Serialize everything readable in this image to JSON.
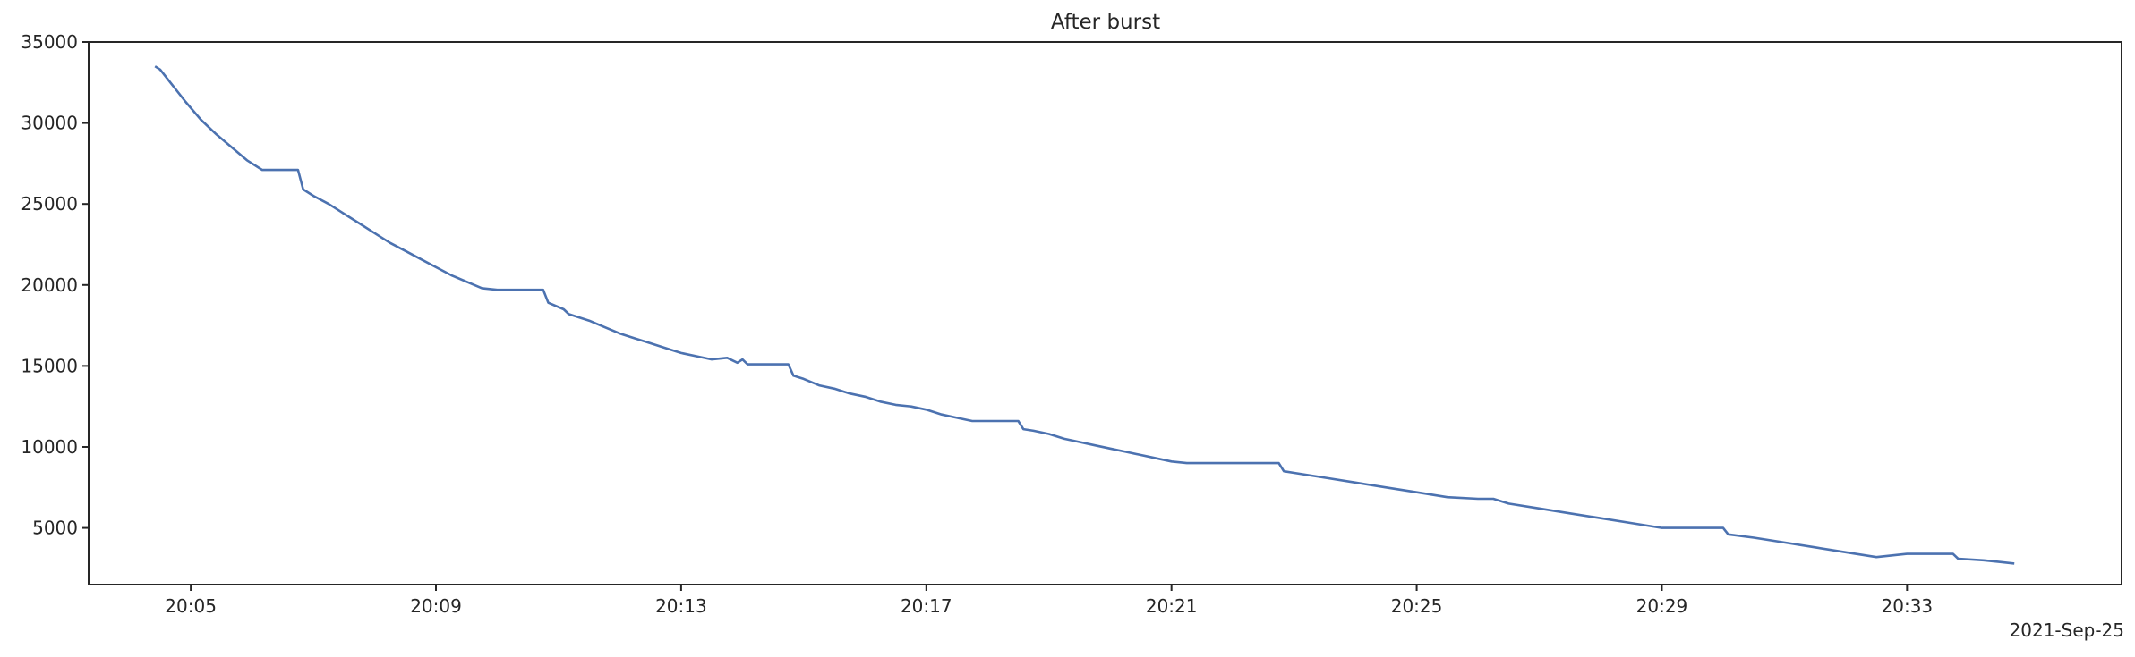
{
  "chart_data": {
    "type": "line",
    "title": "After burst",
    "xlabel": "",
    "ylabel": "",
    "x_offset_label": "2021-Sep-25",
    "xlim": [
      "20:03:20",
      "20:36:30"
    ],
    "ylim": [
      1500,
      35000
    ],
    "x_ticks": [
      "20:05",
      "20:09",
      "20:13",
      "20:17",
      "20:21",
      "20:25",
      "20:29",
      "20:33"
    ],
    "y_ticks": [
      5000,
      10000,
      15000,
      20000,
      25000,
      30000,
      35000
    ],
    "grid": false,
    "line_color": "#4c72b0",
    "series": [
      {
        "x": [
          "20:04:25",
          "20:04:30",
          "20:04:40",
          "20:04:55",
          "20:05:10",
          "20:05:25",
          "20:05:40",
          "20:05:55",
          "20:06:10",
          "20:06:15",
          "20:06:45",
          "20:06:50",
          "20:07:00",
          "20:07:15",
          "20:07:30",
          "20:07:45",
          "20:08:00",
          "20:08:15",
          "20:08:30",
          "20:08:45",
          "20:09:00",
          "20:09:15",
          "20:09:30",
          "20:09:45",
          "20:10:00",
          "20:10:15",
          "20:10:45",
          "20:10:50",
          "20:11:05",
          "20:11:10",
          "20:11:15",
          "20:11:30",
          "20:11:45",
          "20:12:00",
          "20:12:15",
          "20:12:30",
          "20:12:45",
          "20:13:00",
          "20:13:15",
          "20:13:30",
          "20:13:45",
          "20:13:55",
          "20:14:00",
          "20:14:05",
          "20:14:15",
          "20:14:45",
          "20:14:50",
          "20:15:00",
          "20:15:15",
          "20:15:30",
          "20:15:45",
          "20:16:00",
          "20:16:15",
          "20:16:30",
          "20:16:45",
          "20:17:00",
          "20:17:15",
          "20:17:30",
          "20:17:45",
          "20:18:00",
          "20:18:30",
          "20:18:35",
          "20:18:45",
          "20:19:00",
          "20:19:15",
          "20:19:30",
          "20:19:45",
          "20:20:00",
          "20:20:15",
          "20:20:30",
          "20:20:45",
          "20:21:00",
          "20:21:15",
          "20:21:30",
          "20:21:45",
          "20:22:00",
          "20:22:30",
          "20:22:45",
          "20:22:50",
          "20:23:00",
          "20:23:30",
          "20:24:00",
          "20:24:30",
          "20:25:00",
          "20:25:30",
          "20:26:00",
          "20:26:10",
          "20:26:15",
          "20:26:30",
          "20:27:00",
          "20:27:30",
          "20:28:00",
          "20:28:30",
          "20:29:00",
          "20:29:15",
          "20:29:30",
          "20:30:00",
          "20:30:05",
          "20:30:30",
          "20:31:00",
          "20:31:30",
          "20:32:00",
          "20:32:30",
          "20:33:00",
          "20:33:15",
          "20:33:30",
          "20:33:45",
          "20:33:50",
          "20:34:15",
          "20:34:30",
          "20:34:45"
        ],
        "y": [
          33500,
          33300,
          32500,
          31300,
          30200,
          29300,
          28500,
          27700,
          27100,
          27100,
          27100,
          25900,
          25500,
          25000,
          24400,
          23800,
          23200,
          22600,
          22100,
          21600,
          21100,
          20600,
          20200,
          19800,
          19700,
          19700,
          19700,
          18900,
          18500,
          18200,
          18100,
          17800,
          17400,
          17000,
          16700,
          16400,
          16100,
          15800,
          15600,
          15400,
          15500,
          15200,
          15400,
          15100,
          15100,
          15100,
          14400,
          14200,
          13800,
          13600,
          13300,
          13100,
          12800,
          12600,
          12500,
          12300,
          12000,
          11800,
          11600,
          11600,
          11600,
          11100,
          11000,
          10800,
          10500,
          10300,
          10100,
          9900,
          9700,
          9500,
          9300,
          9100,
          9000,
          9000,
          9000,
          9000,
          9000,
          9000,
          8500,
          8400,
          8100,
          7800,
          7500,
          7200,
          6900,
          6800,
          6800,
          6800,
          6500,
          6200,
          5900,
          5600,
          5300,
          5000,
          5000,
          5000,
          5000,
          4600,
          4400,
          4100,
          3800,
          3500,
          3200,
          3400,
          3400,
          3400,
          3400,
          3100,
          3000,
          2900,
          2800
        ]
      }
    ]
  }
}
